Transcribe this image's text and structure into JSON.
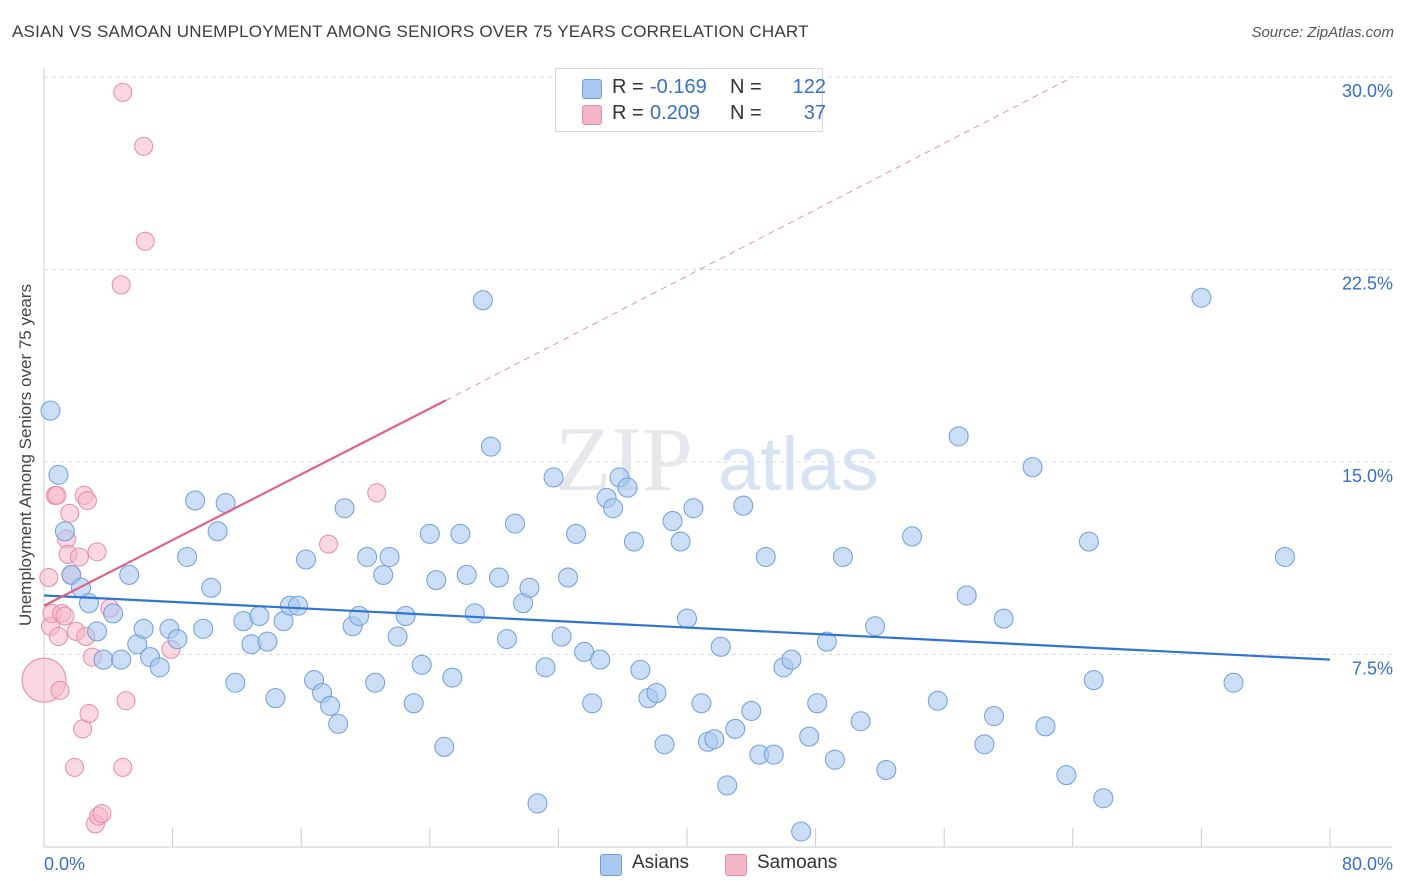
{
  "header": {
    "title": "ASIAN VS SAMOAN UNEMPLOYMENT AMONG SENIORS OVER 75 YEARS CORRELATION CHART",
    "source": "Source: ZipAtlas.com"
  },
  "watermark": {
    "zip": "ZIP",
    "atlas": "atlas"
  },
  "legend_top": {
    "rows": [
      {
        "r_label": "R =",
        "r_value": "-0.169",
        "n_label": "N =",
        "n_value": "122",
        "color": "#a9c8f0"
      },
      {
        "r_label": "R =",
        "r_value": "0.209",
        "n_label": "N =",
        "n_value": "37",
        "color": "#f5b6c8"
      }
    ]
  },
  "legend_bottom": {
    "asians": "Asians",
    "samoans": "Samoans"
  },
  "colors": {
    "asian_fill": "#a9c8f0",
    "asian_stroke": "#6e9fdc",
    "asian_line": "#2f74d0",
    "samoan_fill": "#f5b6c8",
    "samoan_stroke": "#e88aa6",
    "samoan_line": "#e0608a",
    "tick_label": "#3570c8",
    "grid": "#d8dce3"
  },
  "chart_data": {
    "type": "scatter",
    "title": "ASIAN VS SAMOAN UNEMPLOYMENT AMONG SENIORS OVER 75 YEARS CORRELATION CHART",
    "xlabel": "",
    "ylabel": "Unemployment Among Seniors over 75 years",
    "xlim": [
      0,
      80
    ],
    "ylim": [
      0,
      30
    ],
    "x_tick_labels": [
      "0.0%",
      "80.0%"
    ],
    "y_ticks": [
      7.5,
      15.0,
      22.5,
      30.0
    ],
    "y_tick_labels": [
      "7.5%",
      "15.0%",
      "22.5%",
      "30.0%"
    ],
    "grid": true,
    "legend": "top-center",
    "series": [
      {
        "name": "Asians",
        "r": -0.169,
        "n": 122,
        "trend": {
          "x": [
            0,
            80
          ],
          "y": [
            9.8,
            7.3
          ]
        },
        "points": [
          [
            0.4,
            17.0
          ],
          [
            0.9,
            14.5
          ],
          [
            1.3,
            12.3
          ],
          [
            1.7,
            10.6
          ],
          [
            2.3,
            10.1
          ],
          [
            2.8,
            9.5
          ],
          [
            3.3,
            8.4
          ],
          [
            3.7,
            7.3
          ],
          [
            4.3,
            9.1
          ],
          [
            4.8,
            7.3
          ],
          [
            5.3,
            10.6
          ],
          [
            5.8,
            7.9
          ],
          [
            6.2,
            8.5
          ],
          [
            6.6,
            7.4
          ],
          [
            7.2,
            7.0
          ],
          [
            7.8,
            8.5
          ],
          [
            8.3,
            8.1
          ],
          [
            8.9,
            11.3
          ],
          [
            9.4,
            13.5
          ],
          [
            9.9,
            8.5
          ],
          [
            10.4,
            10.1
          ],
          [
            10.8,
            12.3
          ],
          [
            11.3,
            13.4
          ],
          [
            11.9,
            6.4
          ],
          [
            12.4,
            8.8
          ],
          [
            12.9,
            7.9
          ],
          [
            13.4,
            9.0
          ],
          [
            13.9,
            8.0
          ],
          [
            14.4,
            5.8
          ],
          [
            14.9,
            8.8
          ],
          [
            15.3,
            9.4
          ],
          [
            15.8,
            9.4
          ],
          [
            16.3,
            11.2
          ],
          [
            16.8,
            6.5
          ],
          [
            17.3,
            6.0
          ],
          [
            17.8,
            5.5
          ],
          [
            18.3,
            4.8
          ],
          [
            18.7,
            13.2
          ],
          [
            19.2,
            8.6
          ],
          [
            19.6,
            9.0
          ],
          [
            20.1,
            11.3
          ],
          [
            20.6,
            6.4
          ],
          [
            21.1,
            10.6
          ],
          [
            21.5,
            11.3
          ],
          [
            22.0,
            8.2
          ],
          [
            22.5,
            9.0
          ],
          [
            23.0,
            5.6
          ],
          [
            23.5,
            7.1
          ],
          [
            24.0,
            12.2
          ],
          [
            24.4,
            10.4
          ],
          [
            24.9,
            3.9
          ],
          [
            25.4,
            6.6
          ],
          [
            25.9,
            12.2
          ],
          [
            26.3,
            10.6
          ],
          [
            26.8,
            9.1
          ],
          [
            27.3,
            21.3
          ],
          [
            27.8,
            15.6
          ],
          [
            28.3,
            10.5
          ],
          [
            28.8,
            8.1
          ],
          [
            29.3,
            12.6
          ],
          [
            29.8,
            9.5
          ],
          [
            30.2,
            10.1
          ],
          [
            30.7,
            1.7
          ],
          [
            31.2,
            7.0
          ],
          [
            31.7,
            14.4
          ],
          [
            32.2,
            8.2
          ],
          [
            32.6,
            10.5
          ],
          [
            33.1,
            12.2
          ],
          [
            33.6,
            7.6
          ],
          [
            34.1,
            5.6
          ],
          [
            34.6,
            7.3
          ],
          [
            35.0,
            13.6
          ],
          [
            35.4,
            13.2
          ],
          [
            35.8,
            14.4
          ],
          [
            36.3,
            14.0
          ],
          [
            36.7,
            11.9
          ],
          [
            37.1,
            6.9
          ],
          [
            37.6,
            5.8
          ],
          [
            38.1,
            6.0
          ],
          [
            38.6,
            4.0
          ],
          [
            39.1,
            12.7
          ],
          [
            39.6,
            11.9
          ],
          [
            40.0,
            8.9
          ],
          [
            40.4,
            13.2
          ],
          [
            40.9,
            5.6
          ],
          [
            41.3,
            4.1
          ],
          [
            41.7,
            4.2
          ],
          [
            42.1,
            7.8
          ],
          [
            42.5,
            2.4
          ],
          [
            43.0,
            4.6
          ],
          [
            43.5,
            13.3
          ],
          [
            44.0,
            5.3
          ],
          [
            44.5,
            3.6
          ],
          [
            44.9,
            11.3
          ],
          [
            45.4,
            3.6
          ],
          [
            46.0,
            7.0
          ],
          [
            46.5,
            7.3
          ],
          [
            47.1,
            0.6
          ],
          [
            47.6,
            4.3
          ],
          [
            48.1,
            5.6
          ],
          [
            48.7,
            8.0
          ],
          [
            49.2,
            3.4
          ],
          [
            49.7,
            11.3
          ],
          [
            50.8,
            4.9
          ],
          [
            51.7,
            8.6
          ],
          [
            52.4,
            3.0
          ],
          [
            54.0,
            12.1
          ],
          [
            55.6,
            5.7
          ],
          [
            56.9,
            16.0
          ],
          [
            57.4,
            9.8
          ],
          [
            58.5,
            4.0
          ],
          [
            59.1,
            5.1
          ],
          [
            59.7,
            8.9
          ],
          [
            61.5,
            14.8
          ],
          [
            62.3,
            4.7
          ],
          [
            63.6,
            2.8
          ],
          [
            65.0,
            11.9
          ],
          [
            65.3,
            6.5
          ],
          [
            65.9,
            1.9
          ],
          [
            72.0,
            21.4
          ],
          [
            77.2,
            11.3
          ],
          [
            74.0,
            6.4
          ]
        ]
      },
      {
        "name": "Samoans",
        "r": 0.209,
        "n": 37,
        "trend": {
          "x": [
            0,
            25
          ],
          "y": [
            9.4,
            17.4
          ]
        },
        "trend_extended": {
          "x": [
            25,
            64
          ],
          "y": [
            17.4,
            30.0
          ]
        },
        "points": [
          [
            0.0,
            6.5
          ],
          [
            0.3,
            10.5
          ],
          [
            0.4,
            8.6
          ],
          [
            0.5,
            9.1
          ],
          [
            0.7,
            13.7
          ],
          [
            0.8,
            13.7
          ],
          [
            0.9,
            8.2
          ],
          [
            1.0,
            6.1
          ],
          [
            1.1,
            9.1
          ],
          [
            1.3,
            9.0
          ],
          [
            1.4,
            12.0
          ],
          [
            1.5,
            11.4
          ],
          [
            1.6,
            13.0
          ],
          [
            1.7,
            10.6
          ],
          [
            1.9,
            3.1
          ],
          [
            2.0,
            8.4
          ],
          [
            2.2,
            11.3
          ],
          [
            2.4,
            4.6
          ],
          [
            2.5,
            13.7
          ],
          [
            2.6,
            8.2
          ],
          [
            2.7,
            13.5
          ],
          [
            2.8,
            5.2
          ],
          [
            3.0,
            7.4
          ],
          [
            3.2,
            0.9
          ],
          [
            3.3,
            11.5
          ],
          [
            3.4,
            1.2
          ],
          [
            3.6,
            1.3
          ],
          [
            4.1,
            9.3
          ],
          [
            4.9,
            3.1
          ],
          [
            5.1,
            5.7
          ],
          [
            4.8,
            21.9
          ],
          [
            4.9,
            29.4
          ],
          [
            6.2,
            27.3
          ],
          [
            6.3,
            23.6
          ],
          [
            7.9,
            7.7
          ],
          [
            17.7,
            11.8
          ],
          [
            20.7,
            13.8
          ]
        ]
      }
    ]
  }
}
